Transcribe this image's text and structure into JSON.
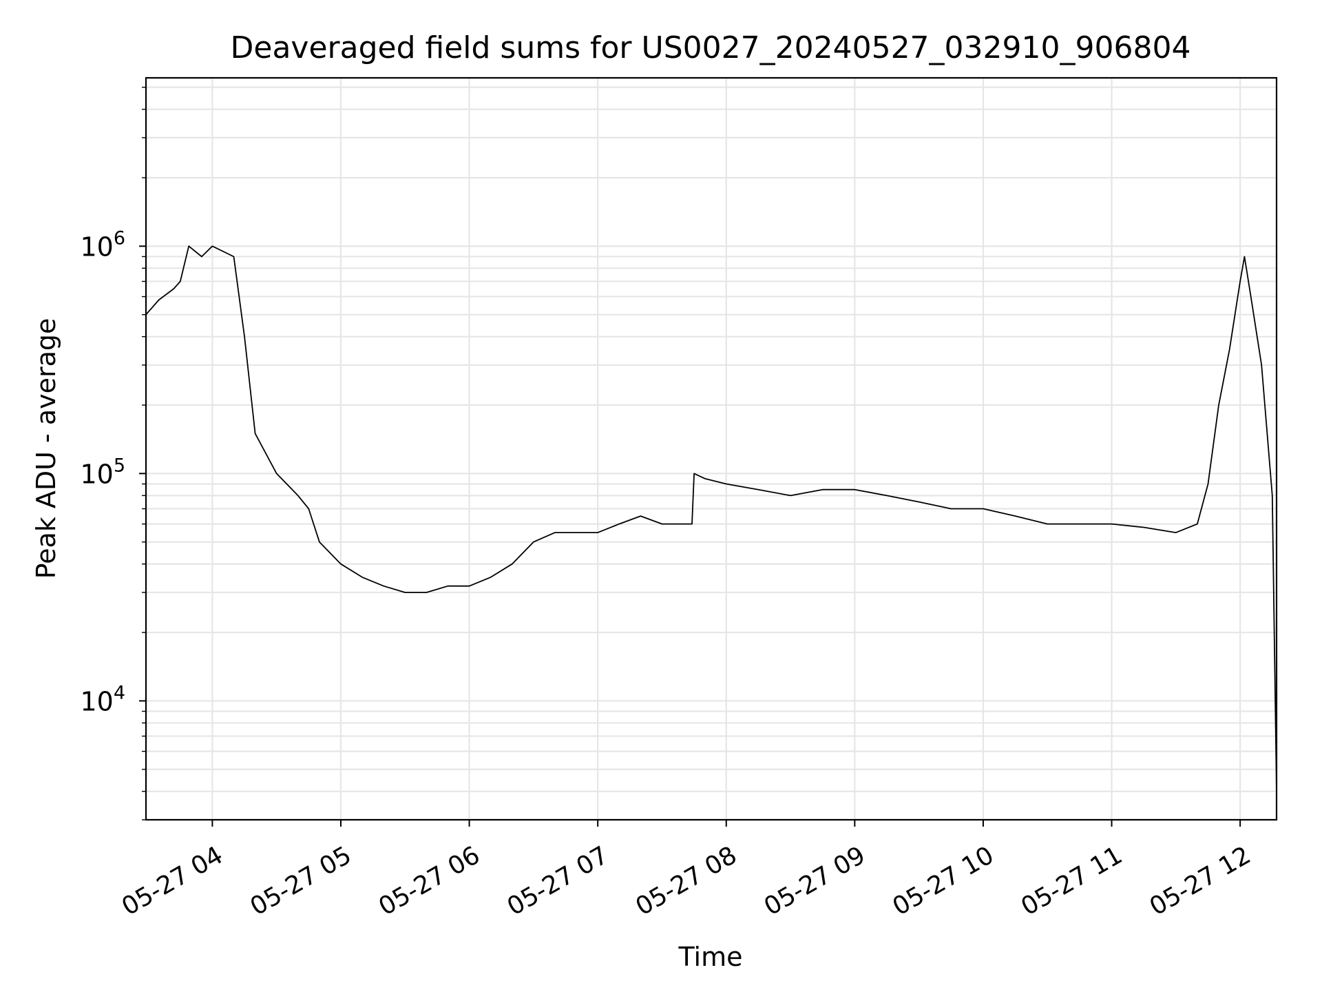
{
  "chart_data": {
    "type": "line",
    "title": "Deaveraged field sums for US0027_20240527_032910_906804",
    "xlabel": "Time",
    "ylabel": "Peak ADU - average",
    "yscale": "log",
    "ylim": [
      3000,
      5500000
    ],
    "xlim": [
      "2024-05-27 03:29",
      "2024-05-27 12:17"
    ],
    "grid": true,
    "line_color": "#000000",
    "x_ticks": [
      "05-27 04",
      "05-27 05",
      "05-27 06",
      "05-27 07",
      "05-27 08",
      "05-27 09",
      "05-27 10",
      "05-27 11",
      "05-27 12"
    ],
    "y_ticks": [
      {
        "base": "10",
        "exp": "4",
        "value": 10000
      },
      {
        "base": "10",
        "exp": "5",
        "value": 100000
      },
      {
        "base": "10",
        "exp": "6",
        "value": 1000000
      }
    ],
    "series": [
      {
        "x": [
          "2024-05-27 03:29",
          "2024-05-27 03:35",
          "2024-05-27 03:42",
          "2024-05-27 03:45",
          "2024-05-27 03:49",
          "2024-05-27 03:55",
          "2024-05-27 04:00",
          "2024-05-27 04:10",
          "2024-05-27 04:15",
          "2024-05-27 04:20",
          "2024-05-27 04:30",
          "2024-05-27 04:40",
          "2024-05-27 04:45",
          "2024-05-27 04:50",
          "2024-05-27 05:00",
          "2024-05-27 05:10",
          "2024-05-27 05:20",
          "2024-05-27 05:30",
          "2024-05-27 05:40",
          "2024-05-27 05:50",
          "2024-05-27 06:00",
          "2024-05-27 06:10",
          "2024-05-27 06:20",
          "2024-05-27 06:30",
          "2024-05-27 06:40",
          "2024-05-27 06:50",
          "2024-05-27 07:00",
          "2024-05-27 07:10",
          "2024-05-27 07:20",
          "2024-05-27 07:30",
          "2024-05-27 07:40",
          "2024-05-27 07:44",
          "2024-05-27 07:45",
          "2024-05-27 07:50",
          "2024-05-27 08:00",
          "2024-05-27 08:15",
          "2024-05-27 08:30",
          "2024-05-27 08:45",
          "2024-05-27 09:00",
          "2024-05-27 09:15",
          "2024-05-27 09:30",
          "2024-05-27 09:45",
          "2024-05-27 10:00",
          "2024-05-27 10:15",
          "2024-05-27 10:30",
          "2024-05-27 10:45",
          "2024-05-27 11:00",
          "2024-05-27 11:15",
          "2024-05-27 11:30",
          "2024-05-27 11:40",
          "2024-05-27 11:45",
          "2024-05-27 11:50",
          "2024-05-27 11:55",
          "2024-05-27 12:00",
          "2024-05-27 12:02",
          "2024-05-27 12:05",
          "2024-05-27 12:10",
          "2024-05-27 12:15",
          "2024-05-27 12:17"
        ],
        "y": [
          500000,
          580000,
          650000,
          700000,
          1000000,
          900000,
          1000000,
          900000,
          400000,
          150000,
          100000,
          80000,
          70000,
          50000,
          40000,
          35000,
          32000,
          30000,
          30000,
          32000,
          32000,
          35000,
          40000,
          50000,
          55000,
          55000,
          55000,
          60000,
          65000,
          60000,
          60000,
          60000,
          100000,
          95000,
          90000,
          85000,
          80000,
          85000,
          85000,
          80000,
          75000,
          70000,
          70000,
          65000,
          60000,
          60000,
          60000,
          58000,
          55000,
          60000,
          90000,
          200000,
          350000,
          700000,
          900000,
          600000,
          300000,
          80000,
          4000
        ]
      }
    ]
  }
}
